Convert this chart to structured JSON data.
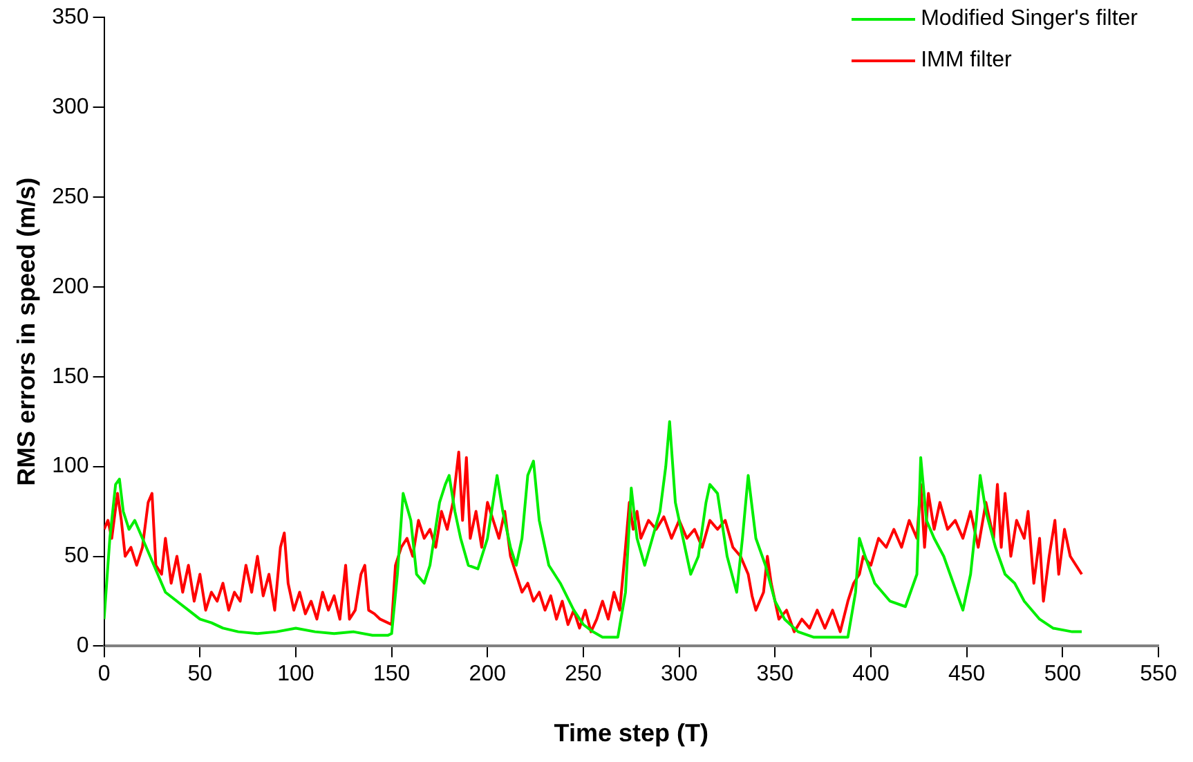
{
  "chart_data": {
    "type": "line",
    "xlabel": "Time step (T)",
    "ylabel": "RMS errors in speed (m/s)",
    "xlim": [
      0,
      550
    ],
    "xticks": [
      0,
      50,
      100,
      150,
      200,
      250,
      300,
      350,
      400,
      450,
      500,
      550
    ],
    "ylim": [
      0,
      350
    ],
    "yticks": [
      0,
      50,
      100,
      150,
      200,
      250,
      300,
      350
    ],
    "grid": false,
    "legend": "top right",
    "marker": "none",
    "line_style": "solid",
    "series": [
      {
        "name": "Modified Singer's filter",
        "color": "#00ee00",
        "x": [
          0,
          3,
          6,
          8,
          10,
          13,
          16,
          20,
          24,
          28,
          32,
          38,
          44,
          50,
          56,
          62,
          70,
          80,
          90,
          100,
          110,
          120,
          130,
          140,
          148,
          150,
          153,
          156,
          160,
          163,
          167,
          170,
          175,
          178,
          180,
          183,
          186,
          190,
          195,
          200,
          205,
          208,
          212,
          215,
          218,
          221,
          224,
          227,
          232,
          238,
          245,
          250,
          255,
          260,
          268,
          272,
          275,
          278,
          282,
          286,
          290,
          293,
          295,
          298,
          302,
          306,
          310,
          314,
          316,
          320,
          325,
          330,
          333,
          336,
          340,
          345,
          350,
          355,
          362,
          370,
          380,
          388,
          392,
          394,
          397,
          402,
          410,
          418,
          424,
          426,
          429,
          433,
          438,
          443,
          448,
          452,
          455,
          457,
          460,
          465,
          470,
          475,
          480,
          488,
          495,
          505,
          510
        ],
        "values": [
          15,
          60,
          90,
          93,
          75,
          65,
          70,
          60,
          50,
          40,
          30,
          25,
          20,
          15,
          13,
          10,
          8,
          7,
          8,
          10,
          8,
          7,
          8,
          6,
          6,
          7,
          40,
          85,
          70,
          40,
          35,
          45,
          80,
          90,
          95,
          75,
          60,
          45,
          43,
          60,
          95,
          75,
          55,
          45,
          60,
          95,
          103,
          70,
          45,
          35,
          20,
          12,
          8,
          5,
          5,
          30,
          88,
          60,
          45,
          60,
          75,
          100,
          125,
          80,
          60,
          40,
          50,
          80,
          90,
          85,
          50,
          30,
          60,
          95,
          60,
          45,
          25,
          15,
          8,
          5,
          5,
          5,
          30,
          60,
          50,
          35,
          25,
          22,
          40,
          105,
          70,
          60,
          50,
          35,
          20,
          40,
          70,
          95,
          75,
          55,
          40,
          35,
          25,
          15,
          10,
          8,
          8
        ]
      },
      {
        "name": "IMM filter",
        "color": "#ff0000",
        "x": [
          0,
          2,
          4,
          7,
          9,
          11,
          14,
          17,
          20,
          23,
          25,
          27,
          30,
          32,
          35,
          38,
          41,
          44,
          47,
          50,
          53,
          56,
          59,
          62,
          65,
          68,
          71,
          74,
          77,
          80,
          83,
          86,
          89,
          92,
          94,
          96,
          99,
          102,
          105,
          108,
          111,
          114,
          117,
          120,
          123,
          126,
          128,
          131,
          134,
          136,
          138,
          141,
          144,
          148,
          150,
          152,
          155,
          158,
          161,
          164,
          167,
          170,
          173,
          176,
          179,
          182,
          185,
          187,
          189,
          191,
          194,
          197,
          200,
          203,
          206,
          209,
          212,
          215,
          218,
          221,
          224,
          227,
          230,
          233,
          236,
          239,
          242,
          245,
          248,
          251,
          254,
          257,
          260,
          263,
          266,
          269,
          272,
          274,
          276,
          278,
          280,
          284,
          288,
          292,
          296,
          300,
          304,
          308,
          312,
          316,
          320,
          324,
          328,
          332,
          336,
          338,
          340,
          344,
          346,
          348,
          352,
          356,
          360,
          364,
          368,
          372,
          376,
          380,
          384,
          388,
          391,
          394,
          396,
          400,
          404,
          408,
          412,
          416,
          420,
          424,
          426,
          428,
          430,
          433,
          436,
          440,
          444,
          448,
          452,
          456,
          460,
          464,
          466,
          468,
          470,
          473,
          476,
          480,
          482,
          485,
          488,
          490,
          493,
          496,
          498,
          501,
          504,
          507,
          510
        ],
        "values": [
          65,
          70,
          60,
          85,
          70,
          50,
          55,
          45,
          55,
          80,
          85,
          45,
          40,
          60,
          35,
          50,
          30,
          45,
          25,
          40,
          20,
          30,
          25,
          35,
          20,
          30,
          25,
          45,
          30,
          50,
          28,
          40,
          20,
          55,
          63,
          35,
          20,
          30,
          18,
          25,
          15,
          30,
          20,
          28,
          15,
          45,
          15,
          20,
          40,
          45,
          20,
          18,
          15,
          13,
          12,
          45,
          55,
          60,
          50,
          70,
          60,
          65,
          55,
          75,
          65,
          80,
          108,
          70,
          105,
          60,
          75,
          55,
          80,
          70,
          60,
          75,
          50,
          40,
          30,
          35,
          25,
          30,
          20,
          28,
          15,
          25,
          12,
          20,
          10,
          20,
          8,
          15,
          25,
          15,
          30,
          20,
          55,
          80,
          65,
          75,
          60,
          70,
          65,
          72,
          60,
          70,
          60,
          65,
          55,
          70,
          65,
          70,
          55,
          50,
          40,
          28,
          20,
          30,
          50,
          35,
          15,
          20,
          8,
          15,
          10,
          20,
          10,
          20,
          8,
          25,
          35,
          40,
          50,
          45,
          60,
          55,
          65,
          55,
          70,
          60,
          90,
          55,
          85,
          65,
          80,
          65,
          70,
          60,
          75,
          55,
          80,
          60,
          90,
          55,
          85,
          50,
          70,
          60,
          75,
          35,
          60,
          25,
          50,
          70,
          40,
          65,
          50,
          45,
          40
        ]
      }
    ]
  }
}
